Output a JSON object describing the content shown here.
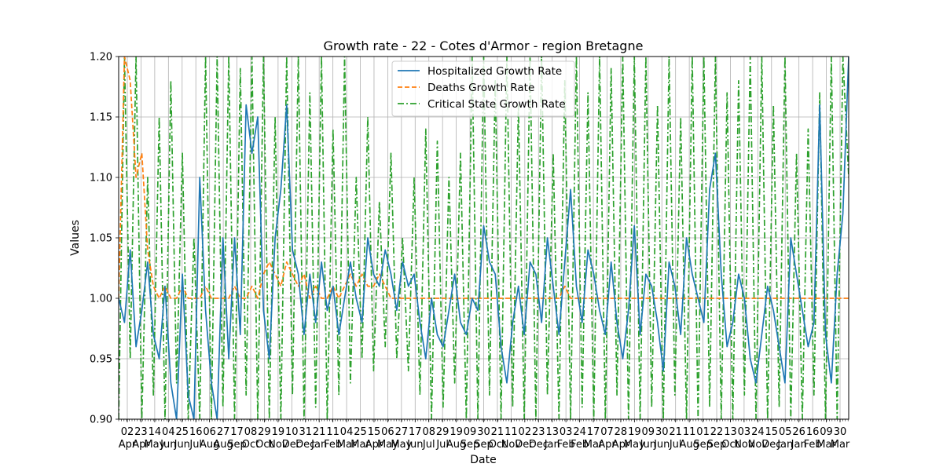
{
  "chart_data": {
    "type": "line",
    "title": "Growth rate - 22 - Cotes d'Armor - region Bretagne",
    "xlabel": "Date",
    "ylabel": "Values",
    "ylim": [
      0.9,
      1.2
    ],
    "yticks": [
      "0.90",
      "0.95",
      "1.00",
      "1.05",
      "1.10",
      "1.15",
      "1.20"
    ],
    "grid": true,
    "legend_position": "top-center",
    "x_tick_days": [
      "02",
      "23",
      "14",
      "04",
      "25",
      "16",
      "06",
      "27",
      "17",
      "08",
      "29",
      "19",
      "10",
      "31",
      "21",
      "11",
      "04",
      "25",
      "15",
      "06",
      "27",
      "17",
      "08",
      "29",
      "19",
      "09",
      "30",
      "21",
      "11",
      "02",
      "23",
      "13",
      "03",
      "24",
      "17",
      "07",
      "28",
      "19",
      "09",
      "30",
      "21",
      "11",
      "01",
      "22",
      "13",
      "03",
      "24",
      "15",
      "05",
      "26",
      "16",
      "09",
      "30"
    ],
    "x_tick_months": [
      "Apr",
      "Apr",
      "May",
      "Jun",
      "Jun",
      "Jul",
      "Aug",
      "Aug",
      "Sep",
      "Oct",
      "Oct",
      "Nov",
      "Dec",
      "Dec",
      "Jan",
      "Feb",
      "Mar",
      "Mar",
      "Apr",
      "May",
      "May",
      "Jun",
      "Jul",
      "Jul",
      "Aug",
      "Sep",
      "Sep",
      "Oct",
      "Nov",
      "Dec",
      "Dec",
      "Jan",
      "Feb",
      "Feb",
      "Mar",
      "Apr",
      "Apr",
      "May",
      "Jun",
      "Jun",
      "Jul",
      "Aug",
      "Sep",
      "Sep",
      "Oct",
      "Nov",
      "Nov",
      "Dec",
      "Jan",
      "Jan",
      "Feb",
      "Mar",
      "Mar"
    ],
    "series": [
      {
        "name": "Hospitalized Growth Rate",
        "color": "#1f77b4",
        "style": "solid",
        "values": [
          1.0,
          0.98,
          1.04,
          0.96,
          0.99,
          1.03,
          0.97,
          0.95,
          1.01,
          0.93,
          0.9,
          1.02,
          0.92,
          0.9,
          1.1,
          0.99,
          0.93,
          0.9,
          1.05,
          0.95,
          1.05,
          0.97,
          1.16,
          1.12,
          1.15,
          0.99,
          0.95,
          1.05,
          1.09,
          1.16,
          1.04,
          1.02,
          0.97,
          1.02,
          0.98,
          1.03,
          0.99,
          1.01,
          0.97,
          1.0,
          1.03,
          1.0,
          0.98,
          1.05,
          1.02,
          1.01,
          1.04,
          1.02,
          0.99,
          1.03,
          1.01,
          1.02,
          0.98,
          0.95,
          1.0,
          0.97,
          0.96,
          0.99,
          1.02,
          0.98,
          0.97,
          1.0,
          0.99,
          1.06,
          1.03,
          1.02,
          0.96,
          0.93,
          0.98,
          1.01,
          0.97,
          1.03,
          1.02,
          0.98,
          1.05,
          1.01,
          0.97,
          1.03,
          1.09,
          1.01,
          0.98,
          1.04,
          1.02,
          0.99,
          0.97,
          1.03,
          0.98,
          0.95,
          0.99,
          1.06,
          0.97,
          1.02,
          1.01,
          0.98,
          0.94,
          1.03,
          1.01,
          0.97,
          1.05,
          1.02,
          1.0,
          0.98,
          1.09,
          1.12,
          1.02,
          0.96,
          0.98,
          1.02,
          1.0,
          0.95,
          0.93,
          0.97,
          1.01,
          0.99,
          0.96,
          0.93,
          1.05,
          1.02,
          0.99,
          0.96,
          0.98,
          1.16,
          0.97,
          0.93,
          1.02,
          1.07,
          1.2
        ]
      },
      {
        "name": "Deaths Growth Rate",
        "color": "#ff7f0e",
        "style": "dashed",
        "values": [
          1.0,
          1.2,
          1.18,
          1.1,
          1.12,
          1.04,
          1.01,
          1.0,
          1.01,
          1.0,
          1.0,
          1.01,
          1.0,
          1.0,
          1.0,
          1.01,
          1.0,
          1.0,
          1.0,
          1.0,
          1.01,
          1.0,
          1.0,
          1.01,
          1.0,
          1.02,
          1.03,
          1.02,
          1.01,
          1.03,
          1.02,
          1.01,
          1.02,
          1.0,
          1.01,
          1.0,
          1.0,
          1.01,
          1.0,
          1.01,
          1.02,
          1.01,
          1.02,
          1.01,
          1.01,
          1.02,
          1.01,
          1.0,
          1.0,
          1.0,
          1.0,
          1.0,
          1.0,
          1.0,
          1.0,
          1.0,
          1.0,
          1.0,
          1.0,
          1.0,
          1.0,
          1.0,
          1.0,
          1.0,
          1.0,
          1.0,
          1.0,
          1.0,
          1.0,
          1.0,
          1.0,
          1.0,
          1.0,
          1.0,
          1.0,
          1.0,
          1.0,
          1.01,
          1.0,
          1.0,
          1.0,
          1.0,
          1.0,
          1.0,
          1.0,
          1.0,
          1.0,
          1.0,
          1.0,
          1.0,
          1.0,
          1.0,
          1.0,
          1.0,
          1.0,
          1.0,
          1.0,
          1.0,
          1.0,
          1.0,
          1.0,
          1.0,
          1.0,
          1.0,
          1.0,
          1.0,
          1.0,
          1.0,
          1.0,
          1.0,
          1.0,
          1.0,
          1.0,
          1.0,
          1.0,
          1.0,
          1.0,
          1.0,
          1.0,
          1.0,
          1.0,
          1.0,
          1.0,
          1.0,
          1.0,
          1.0,
          1.0
        ]
      },
      {
        "name": "Critical State Growth Rate",
        "color": "#2ca02c",
        "style": "dashdot",
        "values": [
          0.9,
          1.2,
          0.95,
          1.2,
          0.9,
          1.1,
          0.92,
          1.15,
          0.9,
          1.18,
          0.93,
          1.12,
          0.9,
          1.05,
          0.9,
          1.2,
          0.9,
          1.2,
          0.91,
          1.2,
          0.9,
          1.19,
          0.92,
          1.2,
          0.9,
          1.2,
          0.9,
          1.15,
          0.9,
          1.2,
          0.92,
          1.2,
          0.9,
          1.17,
          0.91,
          1.2,
          0.9,
          1.14,
          0.92,
          1.2,
          0.93,
          1.1,
          0.95,
          1.15,
          0.94,
          1.08,
          0.96,
          1.12,
          0.95,
          1.05,
          0.94,
          1.1,
          0.92,
          1.14,
          0.9,
          1.13,
          0.91,
          1.1,
          0.93,
          1.12,
          0.9,
          1.2,
          0.9,
          1.2,
          0.92,
          1.18,
          0.9,
          1.2,
          0.91,
          1.16,
          0.9,
          1.2,
          0.9,
          1.2,
          0.92,
          1.12,
          0.9,
          1.18,
          0.9,
          1.2,
          0.91,
          1.17,
          0.9,
          1.2,
          0.9,
          1.19,
          0.92,
          1.2,
          0.9,
          1.2,
          0.9,
          1.2,
          0.91,
          1.16,
          0.9,
          1.2,
          0.92,
          1.15,
          0.9,
          1.2,
          0.9,
          1.2,
          0.91,
          1.2,
          0.9,
          1.17,
          0.9,
          1.18,
          0.92,
          1.2,
          0.9,
          1.2,
          0.9,
          1.16,
          0.91,
          1.2,
          0.9,
          1.12,
          0.9,
          1.14,
          0.92,
          1.17,
          0.9,
          1.2,
          0.9,
          1.2,
          1.1
        ]
      }
    ]
  }
}
